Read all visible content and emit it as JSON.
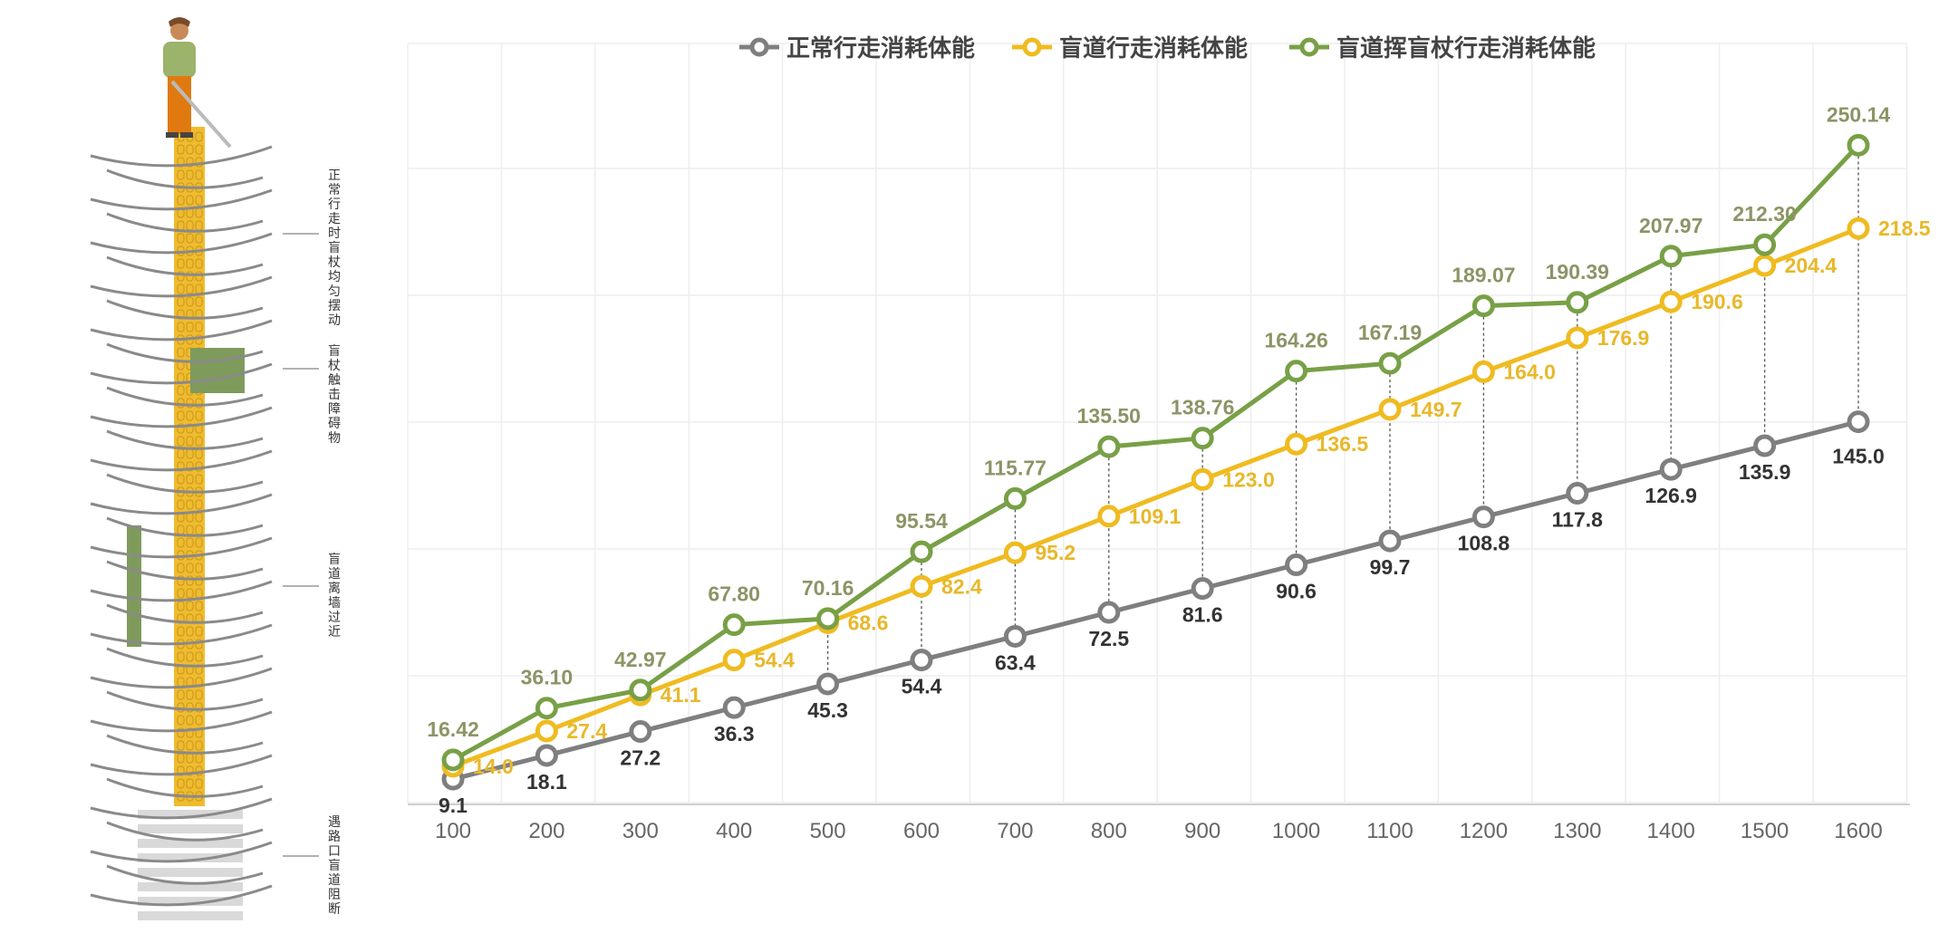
{
  "illustration": {
    "labels": [
      "正常行走时盲杖均匀摆动",
      "盲杖触击障碍物",
      "盲道离墙过近",
      "遇路口盲道阻断"
    ],
    "colors": {
      "tactile": "#efbb2f",
      "obstacle": "#7e9b5b",
      "arc": "#8a8a8a",
      "crossing": "#d9d9d9"
    }
  },
  "chart_data": {
    "type": "line",
    "x": [
      100,
      200,
      300,
      400,
      500,
      600,
      700,
      800,
      900,
      1000,
      1100,
      1200,
      1300,
      1400,
      1500,
      1600
    ],
    "ylim": [
      0,
      260
    ],
    "grid": true,
    "legend_position": "top-center",
    "series": [
      {
        "name": "正常行走消耗体能",
        "color": "#7f7f7f",
        "label_color": "#333333",
        "values": [
          9.1,
          18.1,
          27.2,
          36.3,
          45.3,
          54.4,
          63.4,
          72.5,
          81.6,
          90.6,
          99.7,
          108.8,
          117.8,
          126.9,
          135.9,
          145.0
        ],
        "labels": [
          "9.1",
          "18.1",
          "27.2",
          "36.3",
          "45.3",
          "54.4",
          "63.4",
          "72.5",
          "81.6",
          "90.6",
          "99.7",
          "108.8",
          "117.8",
          "126.9",
          "135.9",
          "145.0"
        ]
      },
      {
        "name": "盲道行走消耗体能",
        "color": "#efbb20",
        "label_color": "#e8b82a",
        "values": [
          14.0,
          27.4,
          41.1,
          54.4,
          68.6,
          82.4,
          95.2,
          109.1,
          123.0,
          136.5,
          149.7,
          164.0,
          176.9,
          190.6,
          204.4,
          218.5
        ],
        "labels": [
          "14.0",
          "27.4",
          "41.1",
          "54.4",
          "68.6",
          "82.4",
          "95.2",
          "109.1",
          "123.0",
          "136.5",
          "149.7",
          "164.0",
          "176.9",
          "190.6",
          "204.4",
          "218.5"
        ]
      },
      {
        "name": "盲道挥盲杖行走消耗体能",
        "color": "#78a046",
        "label_color": "#8d9466",
        "values": [
          16.42,
          36.1,
          42.97,
          67.8,
          70.16,
          95.54,
          115.77,
          135.5,
          138.76,
          164.26,
          167.19,
          189.07,
          190.39,
          207.97,
          212.3,
          250.14
        ],
        "labels": [
          "16.42",
          "36.10",
          "42.97",
          "67.80",
          "70.16",
          "95.54",
          "115.77",
          "135.50",
          "138.76",
          "164.26",
          "167.19",
          "189.07",
          "190.39",
          "207.97",
          "212.30",
          "250.14"
        ]
      }
    ]
  }
}
